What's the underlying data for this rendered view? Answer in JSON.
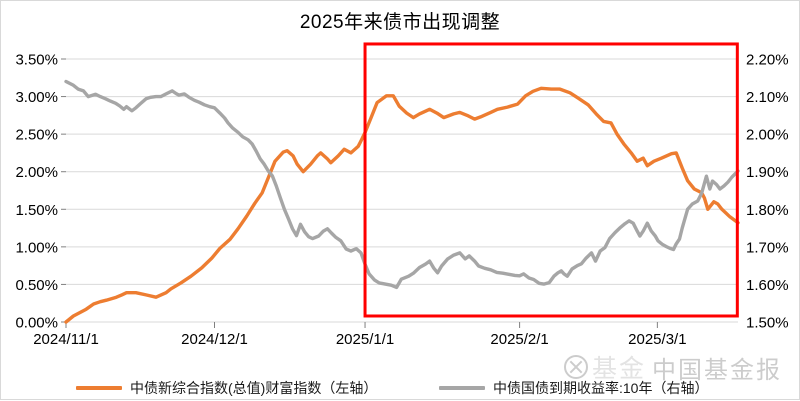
{
  "title": "2025年来债市出现调整",
  "colors": {
    "orange": "#ED7D31",
    "gray": "#A6A6A6",
    "red": "#FF0000",
    "grid": "#D9D9D9",
    "tick": "#808080",
    "axis_text": "#000000"
  },
  "chart_data": {
    "type": "line",
    "title": "2025年来债市出现调整",
    "grid": true,
    "left_axis": {
      "min": 0,
      "max": 3.5,
      "step": 0.5,
      "ticks": [
        "3.50%",
        "3.00%",
        "2.50%",
        "2.00%",
        "1.50%",
        "1.00%",
        "0.50%",
        "0.00%"
      ]
    },
    "right_axis": {
      "min": 1.5,
      "max": 2.2,
      "step": 0.1,
      "ticks": [
        "2.20%",
        "2.10%",
        "2.00%",
        "1.90%",
        "1.80%",
        "1.70%",
        "1.60%",
        "1.50%"
      ]
    },
    "x_ticks": [
      {
        "label": "2024/11/1",
        "f": 0.0
      },
      {
        "label": "2024/12/1",
        "f": 0.221
      },
      {
        "label": "2025/1/1",
        "f": 0.445
      },
      {
        "label": "2025/2/1",
        "f": 0.675
      },
      {
        "label": "2025/3/1",
        "f": 0.88
      }
    ],
    "series": [
      {
        "name": "中债新综合指数(总值)财富指数（左轴）",
        "axis": "left",
        "color": "#ED7D31",
        "points": [
          [
            0,
            0.0
          ],
          [
            0.011,
            0.08
          ],
          [
            0.03,
            0.17
          ],
          [
            0.041,
            0.24
          ],
          [
            0.051,
            0.27
          ],
          [
            0.06,
            0.29
          ],
          [
            0.075,
            0.33
          ],
          [
            0.083,
            0.36
          ],
          [
            0.09,
            0.39
          ],
          [
            0.104,
            0.39
          ],
          [
            0.119,
            0.36
          ],
          [
            0.134,
            0.33
          ],
          [
            0.149,
            0.39
          ],
          [
            0.156,
            0.44
          ],
          [
            0.171,
            0.52
          ],
          [
            0.186,
            0.61
          ],
          [
            0.202,
            0.72
          ],
          [
            0.217,
            0.85
          ],
          [
            0.229,
            0.98
          ],
          [
            0.244,
            1.1
          ],
          [
            0.256,
            1.24
          ],
          [
            0.269,
            1.41
          ],
          [
            0.281,
            1.58
          ],
          [
            0.292,
            1.72
          ],
          [
            0.301,
            1.92
          ],
          [
            0.311,
            2.14
          ],
          [
            0.323,
            2.26
          ],
          [
            0.329,
            2.28
          ],
          [
            0.338,
            2.21
          ],
          [
            0.344,
            2.1
          ],
          [
            0.353,
            2.0
          ],
          [
            0.364,
            2.1
          ],
          [
            0.374,
            2.21
          ],
          [
            0.379,
            2.25
          ],
          [
            0.389,
            2.17
          ],
          [
            0.394,
            2.12
          ],
          [
            0.405,
            2.21
          ],
          [
            0.414,
            2.3
          ],
          [
            0.424,
            2.25
          ],
          [
            0.435,
            2.34
          ],
          [
            0.439,
            2.41
          ],
          [
            0.445,
            2.52
          ],
          [
            0.454,
            2.72
          ],
          [
            0.463,
            2.92
          ],
          [
            0.477,
            3.01
          ],
          [
            0.487,
            3.01
          ],
          [
            0.496,
            2.87
          ],
          [
            0.507,
            2.78
          ],
          [
            0.517,
            2.72
          ],
          [
            0.526,
            2.77
          ],
          [
            0.541,
            2.83
          ],
          [
            0.552,
            2.78
          ],
          [
            0.562,
            2.72
          ],
          [
            0.577,
            2.77
          ],
          [
            0.586,
            2.79
          ],
          [
            0.597,
            2.75
          ],
          [
            0.608,
            2.7
          ],
          [
            0.617,
            2.73
          ],
          [
            0.632,
            2.79
          ],
          [
            0.642,
            2.83
          ],
          [
            0.657,
            2.86
          ],
          [
            0.672,
            2.9
          ],
          [
            0.684,
            3.01
          ],
          [
            0.695,
            3.07
          ],
          [
            0.707,
            3.11
          ],
          [
            0.722,
            3.1
          ],
          [
            0.735,
            3.1
          ],
          [
            0.75,
            3.05
          ],
          [
            0.762,
            2.98
          ],
          [
            0.777,
            2.89
          ],
          [
            0.789,
            2.77
          ],
          [
            0.8,
            2.67
          ],
          [
            0.811,
            2.65
          ],
          [
            0.82,
            2.5
          ],
          [
            0.83,
            2.37
          ],
          [
            0.841,
            2.25
          ],
          [
            0.85,
            2.14
          ],
          [
            0.859,
            2.18
          ],
          [
            0.865,
            2.08
          ],
          [
            0.875,
            2.14
          ],
          [
            0.886,
            2.18
          ],
          [
            0.901,
            2.24
          ],
          [
            0.908,
            2.25
          ],
          [
            0.917,
            2.05
          ],
          [
            0.925,
            1.88
          ],
          [
            0.935,
            1.77
          ],
          [
            0.946,
            1.72
          ],
          [
            0.95,
            1.65
          ],
          [
            0.955,
            1.5
          ],
          [
            0.964,
            1.6
          ],
          [
            0.97,
            1.57
          ],
          [
            0.976,
            1.5
          ],
          [
            0.982,
            1.45
          ],
          [
            0.988,
            1.4
          ],
          [
            1,
            1.32
          ]
        ]
      },
      {
        "name": "中债国债到期收益率:10年（右轴）",
        "axis": "right",
        "color": "#A6A6A6",
        "points": [
          [
            0,
            2.14
          ],
          [
            0.011,
            2.13
          ],
          [
            0.018,
            2.12
          ],
          [
            0.026,
            2.115
          ],
          [
            0.033,
            2.1
          ],
          [
            0.044,
            2.106
          ],
          [
            0.051,
            2.1
          ],
          [
            0.059,
            2.094
          ],
          [
            0.066,
            2.088
          ],
          [
            0.074,
            2.082
          ],
          [
            0.08,
            2.075
          ],
          [
            0.086,
            2.066
          ],
          [
            0.09,
            2.073
          ],
          [
            0.098,
            2.062
          ],
          [
            0.104,
            2.07
          ],
          [
            0.11,
            2.08
          ],
          [
            0.119,
            2.094
          ],
          [
            0.126,
            2.098
          ],
          [
            0.134,
            2.1
          ],
          [
            0.141,
            2.1
          ],
          [
            0.149,
            2.107
          ],
          [
            0.158,
            2.115
          ],
          [
            0.164,
            2.108
          ],
          [
            0.168,
            2.104
          ],
          [
            0.176,
            2.107
          ],
          [
            0.183,
            2.098
          ],
          [
            0.191,
            2.09
          ],
          [
            0.198,
            2.085
          ],
          [
            0.206,
            2.078
          ],
          [
            0.214,
            2.073
          ],
          [
            0.221,
            2.07
          ],
          [
            0.229,
            2.056
          ],
          [
            0.236,
            2.043
          ],
          [
            0.241,
            2.03
          ],
          [
            0.248,
            2.016
          ],
          [
            0.256,
            2.005
          ],
          [
            0.263,
            1.993
          ],
          [
            0.271,
            1.985
          ],
          [
            0.277,
            1.974
          ],
          [
            0.283,
            1.955
          ],
          [
            0.289,
            1.934
          ],
          [
            0.295,
            1.92
          ],
          [
            0.301,
            1.902
          ],
          [
            0.307,
            1.889
          ],
          [
            0.313,
            1.862
          ],
          [
            0.319,
            1.83
          ],
          [
            0.325,
            1.8
          ],
          [
            0.331,
            1.775
          ],
          [
            0.337,
            1.748
          ],
          [
            0.343,
            1.73
          ],
          [
            0.349,
            1.76
          ],
          [
            0.355,
            1.74
          ],
          [
            0.361,
            1.727
          ],
          [
            0.367,
            1.722
          ],
          [
            0.376,
            1.729
          ],
          [
            0.383,
            1.742
          ],
          [
            0.389,
            1.748
          ],
          [
            0.395,
            1.737
          ],
          [
            0.401,
            1.726
          ],
          [
            0.409,
            1.716
          ],
          [
            0.417,
            1.694
          ],
          [
            0.424,
            1.689
          ],
          [
            0.432,
            1.695
          ],
          [
            0.439,
            1.684
          ],
          [
            0.445,
            1.654
          ],
          [
            0.451,
            1.628
          ],
          [
            0.459,
            1.612
          ],
          [
            0.466,
            1.604
          ],
          [
            0.475,
            1.601
          ],
          [
            0.484,
            1.598
          ],
          [
            0.492,
            1.592
          ],
          [
            0.499,
            1.614
          ],
          [
            0.51,
            1.622
          ],
          [
            0.517,
            1.63
          ],
          [
            0.526,
            1.645
          ],
          [
            0.535,
            1.654
          ],
          [
            0.541,
            1.662
          ],
          [
            0.547,
            1.644
          ],
          [
            0.553,
            1.631
          ],
          [
            0.559,
            1.649
          ],
          [
            0.568,
            1.668
          ],
          [
            0.577,
            1.678
          ],
          [
            0.586,
            1.684
          ],
          [
            0.594,
            1.668
          ],
          [
            0.6,
            1.676
          ],
          [
            0.608,
            1.662
          ],
          [
            0.614,
            1.649
          ],
          [
            0.623,
            1.643
          ],
          [
            0.632,
            1.639
          ],
          [
            0.641,
            1.632
          ],
          [
            0.65,
            1.63
          ],
          [
            0.659,
            1.627
          ],
          [
            0.668,
            1.624
          ],
          [
            0.675,
            1.623
          ],
          [
            0.681,
            1.628
          ],
          [
            0.689,
            1.617
          ],
          [
            0.696,
            1.613
          ],
          [
            0.704,
            1.603
          ],
          [
            0.711,
            1.601
          ],
          [
            0.719,
            1.605
          ],
          [
            0.726,
            1.622
          ],
          [
            0.732,
            1.631
          ],
          [
            0.737,
            1.636
          ],
          [
            0.741,
            1.628
          ],
          [
            0.746,
            1.622
          ],
          [
            0.753,
            1.641
          ],
          [
            0.761,
            1.65
          ],
          [
            0.767,
            1.655
          ],
          [
            0.774,
            1.67
          ],
          [
            0.782,
            1.684
          ],
          [
            0.788,
            1.662
          ],
          [
            0.795,
            1.689
          ],
          [
            0.802,
            1.698
          ],
          [
            0.809,
            1.722
          ],
          [
            0.817,
            1.738
          ],
          [
            0.824,
            1.75
          ],
          [
            0.832,
            1.762
          ],
          [
            0.838,
            1.769
          ],
          [
            0.844,
            1.763
          ],
          [
            0.85,
            1.742
          ],
          [
            0.854,
            1.729
          ],
          [
            0.859,
            1.742
          ],
          [
            0.865,
            1.763
          ],
          [
            0.871,
            1.742
          ],
          [
            0.877,
            1.729
          ],
          [
            0.881,
            1.716
          ],
          [
            0.887,
            1.707
          ],
          [
            0.893,
            1.701
          ],
          [
            0.899,
            1.696
          ],
          [
            0.904,
            1.693
          ],
          [
            0.908,
            1.708
          ],
          [
            0.913,
            1.721
          ],
          [
            0.917,
            1.75
          ],
          [
            0.925,
            1.8
          ],
          [
            0.932,
            1.814
          ],
          [
            0.94,
            1.822
          ],
          [
            0.946,
            1.843
          ],
          [
            0.953,
            1.888
          ],
          [
            0.958,
            1.854
          ],
          [
            0.962,
            1.875
          ],
          [
            0.968,
            1.866
          ],
          [
            0.973,
            1.854
          ],
          [
            0.979,
            1.862
          ],
          [
            0.985,
            1.872
          ],
          [
            0.991,
            1.886
          ],
          [
            1,
            1.902
          ]
        ]
      }
    ],
    "annotation_box": {
      "x0_f": 0.445,
      "x1_f": 0.999,
      "v_top_left_axis": 3.7,
      "v_bottom_left_axis": 0.08,
      "color": "#FF0000"
    },
    "legend_position": "bottom"
  },
  "legend": [
    {
      "label": "中债新综合指数(总值)财富指数（左轴）"
    },
    {
      "label": "中债国债到期收益率:10年（右轴）"
    }
  ],
  "watermark": {
    "logo": "circle-seal-icon",
    "ghost": "基金",
    "text": "中国基金报"
  }
}
